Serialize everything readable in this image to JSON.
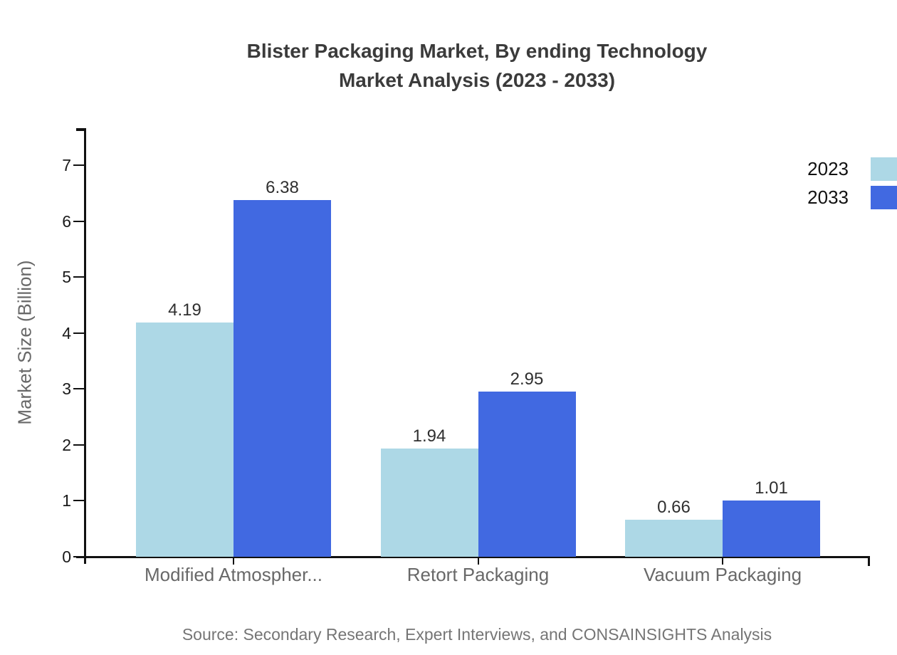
{
  "title": {
    "line1": "Blister Packaging Market, By ending Technology",
    "line2": "Market Analysis (2023 - 2033)"
  },
  "source_note": "Source: Secondary Research, Expert Interviews, and CONSAINSIGHTS Analysis",
  "chart_data": {
    "type": "bar",
    "title": "Blister Packaging Market, By ending Technology Market Analysis (2023 - 2033)",
    "categories": [
      "Modified Atmospher...",
      "Retort Packaging",
      "Vacuum Packaging"
    ],
    "series": [
      {
        "name": "2023",
        "color": "#add8e6",
        "values": [
          4.19,
          1.94,
          0.66
        ]
      },
      {
        "name": "2033",
        "color": "#4169e1",
        "values": [
          6.38,
          2.95,
          1.01
        ]
      }
    ],
    "ylabel": "Market Size (Billion)",
    "xlabel": "",
    "ylim": [
      0,
      7
    ],
    "yticks": [
      0,
      1,
      2,
      3,
      4,
      5,
      6,
      7
    ],
    "grid": false,
    "legend_position": "top-right",
    "value_labels": true
  },
  "colors": {
    "axis": "#111111",
    "title_text": "#3b3b3b",
    "tick_label": "#1a1a1a",
    "category_label": "#686868",
    "value_label": "#2f2f2f",
    "source_text": "#757575"
  }
}
